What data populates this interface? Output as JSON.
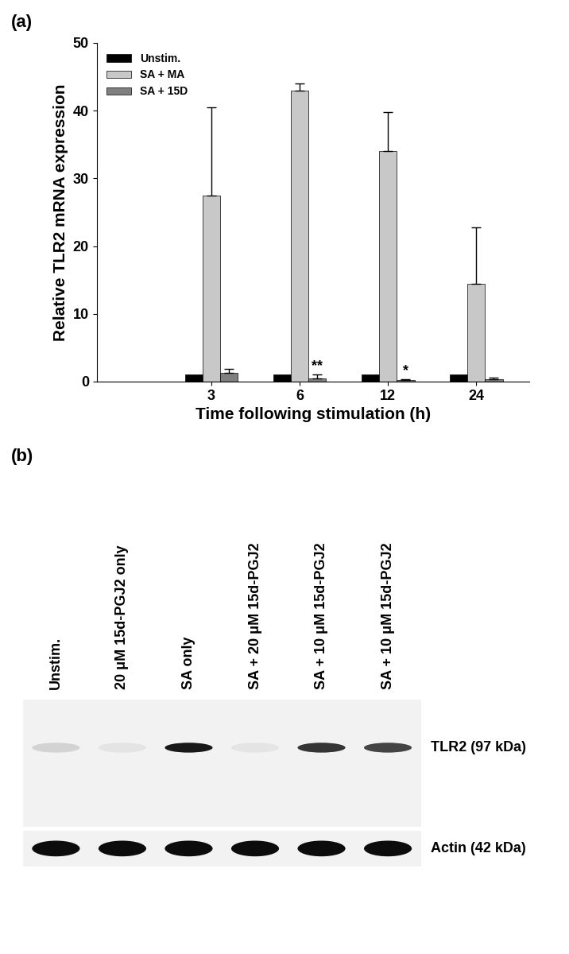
{
  "chart_data": {
    "type": "bar",
    "panel_label": "(a)",
    "x_label": "Time following stimulation (h)",
    "y_label": "Relative TLR2 mRNA expression",
    "categories": [
      "3",
      "6",
      "12",
      "24"
    ],
    "series": [
      {
        "name": "Unstim.",
        "color": "#000000",
        "values": [
          1,
          1,
          1,
          1
        ]
      },
      {
        "name": "SA + MA",
        "color": "#c8c8c8",
        "values": [
          27.5,
          43,
          34,
          14.4
        ],
        "errors": [
          13,
          1,
          5.8,
          8.4
        ]
      },
      {
        "name": "SA + 15D",
        "color": "#808080",
        "values": [
          1.3,
          0.5,
          0.2,
          0.3
        ],
        "errors": [
          0.6,
          0.5,
          0.1,
          0.3
        ]
      }
    ],
    "annotations": [
      {
        "text": "**",
        "category": "6",
        "series": "SA + 15D"
      },
      {
        "text": "*",
        "category": "12",
        "series": "SA + 15D"
      }
    ],
    "ylim": [
      0,
      50
    ],
    "yticks": [
      0,
      10,
      20,
      30,
      40,
      50
    ],
    "legend": "upper left",
    "grid": false
  },
  "blot": {
    "panel_label": "(b)",
    "lanes": [
      "Unstim.",
      "20 μM 15d-PGJ2 only",
      "SA only",
      "SA + 20 μM 15d-PGJ2",
      "SA + 10 μM 15d-PGJ2",
      "SA + 10 μM 15d-PGJ2"
    ],
    "rows": [
      {
        "label": "TLR2 (97 kDa)",
        "intensity": [
          0.15,
          0.05,
          0.9,
          0.05,
          0.8,
          0.75
        ]
      },
      {
        "label": "Actin (42 kDa)",
        "intensity": [
          0.95,
          0.95,
          0.95,
          0.95,
          0.95,
          0.95
        ]
      }
    ]
  }
}
